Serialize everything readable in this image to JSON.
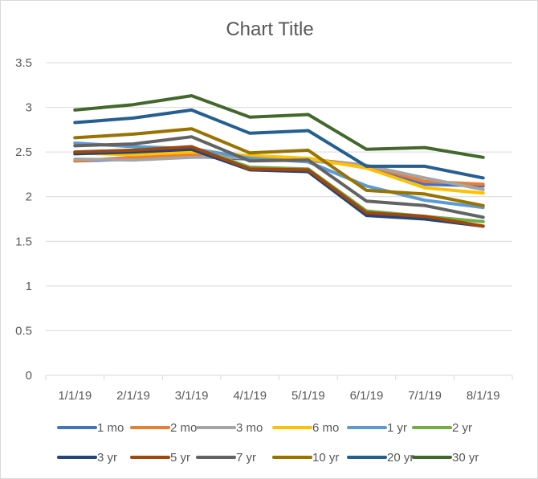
{
  "chart_data": {
    "type": "line",
    "title": "Chart Title",
    "xlabel": "",
    "ylabel": "",
    "categories": [
      "1/1/19",
      "2/1/19",
      "3/1/19",
      "4/1/19",
      "5/1/19",
      "6/1/19",
      "7/1/19",
      "8/1/19"
    ],
    "y_ticks": [
      "0",
      "0.5",
      "1",
      "1.5",
      "2",
      "2.5",
      "3",
      "3.5"
    ],
    "ylim": [
      0,
      3.5
    ],
    "grid": true,
    "legend_position": "bottom",
    "series": [
      {
        "name": "1 mo",
        "color": "#4472C4",
        "values": [
          2.4,
          2.42,
          2.45,
          2.42,
          2.42,
          2.35,
          2.14,
          2.12
        ]
      },
      {
        "name": "2 mo",
        "color": "#ED7D31",
        "values": [
          2.4,
          2.44,
          2.47,
          2.43,
          2.41,
          2.35,
          2.17,
          2.14
        ]
      },
      {
        "name": "3 mo",
        "color": "#A5A5A5",
        "values": [
          2.42,
          2.41,
          2.44,
          2.44,
          2.4,
          2.35,
          2.21,
          2.08
        ]
      },
      {
        "name": "6 mo",
        "color": "#FFC000",
        "values": [
          2.49,
          2.47,
          2.5,
          2.46,
          2.43,
          2.32,
          2.1,
          2.04
        ]
      },
      {
        "name": "1 yr",
        "color": "#5B9BD5",
        "values": [
          2.6,
          2.56,
          2.54,
          2.43,
          2.39,
          2.12,
          1.96,
          1.88
        ]
      },
      {
        "name": "2 yr",
        "color": "#70AD47",
        "values": [
          2.49,
          2.52,
          2.55,
          2.33,
          2.31,
          1.84,
          1.78,
          1.72
        ]
      },
      {
        "name": "3 yr",
        "color": "#264478",
        "values": [
          2.48,
          2.5,
          2.53,
          2.3,
          2.28,
          1.79,
          1.75,
          1.67
        ]
      },
      {
        "name": "5 yr",
        "color": "#9E480E",
        "values": [
          2.5,
          2.52,
          2.56,
          2.31,
          2.3,
          1.82,
          1.78,
          1.67
        ]
      },
      {
        "name": "7 yr",
        "color": "#636363",
        "values": [
          2.57,
          2.59,
          2.67,
          2.4,
          2.41,
          1.95,
          1.9,
          1.77
        ]
      },
      {
        "name": "10 yr",
        "color": "#997300",
        "values": [
          2.66,
          2.7,
          2.76,
          2.49,
          2.52,
          2.07,
          2.03,
          1.9
        ]
      },
      {
        "name": "20 yr",
        "color": "#255E91",
        "values": [
          2.83,
          2.88,
          2.97,
          2.71,
          2.74,
          2.34,
          2.34,
          2.21
        ]
      },
      {
        "name": "30 yr",
        "color": "#43682B",
        "values": [
          2.97,
          3.03,
          3.13,
          2.89,
          2.92,
          2.53,
          2.55,
          2.44
        ]
      }
    ]
  }
}
